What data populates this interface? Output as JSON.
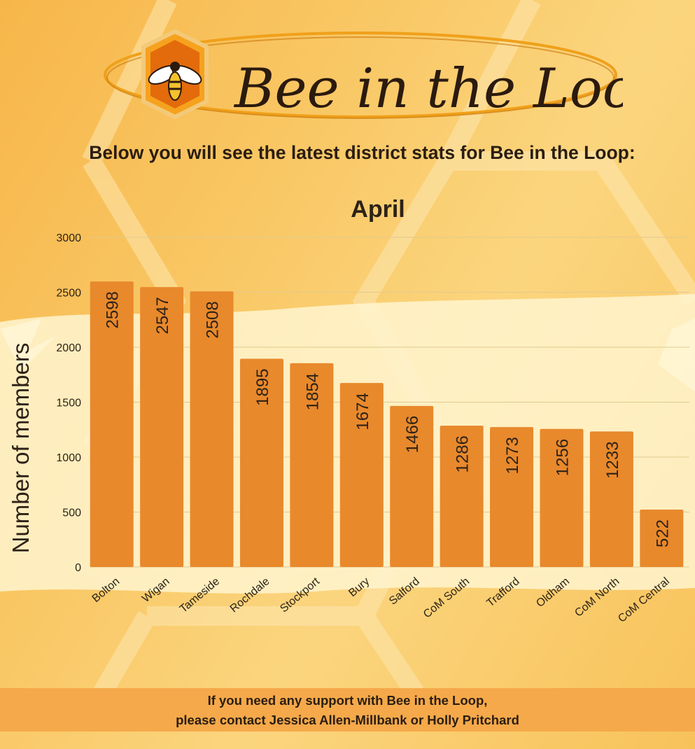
{
  "brand": {
    "logo_text": "Bee in the Loop"
  },
  "subtitle": "Below you will see the latest district stats for Bee in the Loop:",
  "chart_data": {
    "type": "bar",
    "title": "April",
    "xlabel": "",
    "ylabel": "Number of members",
    "ylim": [
      0,
      3000
    ],
    "yticks": [
      0,
      500,
      1000,
      1500,
      2000,
      2500,
      3000
    ],
    "grid": true,
    "categories": [
      "Bolton",
      "Wigan",
      "Tameside",
      "Rochdale",
      "Stockport",
      "Bury",
      "Salford",
      "CoM South",
      "Trafford",
      "Oldham",
      "CoM North",
      "CoM Central"
    ],
    "values": [
      2598,
      2547,
      2508,
      1895,
      1854,
      1674,
      1466,
      1286,
      1273,
      1256,
      1233,
      522
    ],
    "bar_color": "#e8892c",
    "data_labels": true
  },
  "footer": {
    "line1": "If you need any support with Bee in the Loop,",
    "line2": "please contact Jessica Allen-Millbank or Holly Pritchard"
  }
}
